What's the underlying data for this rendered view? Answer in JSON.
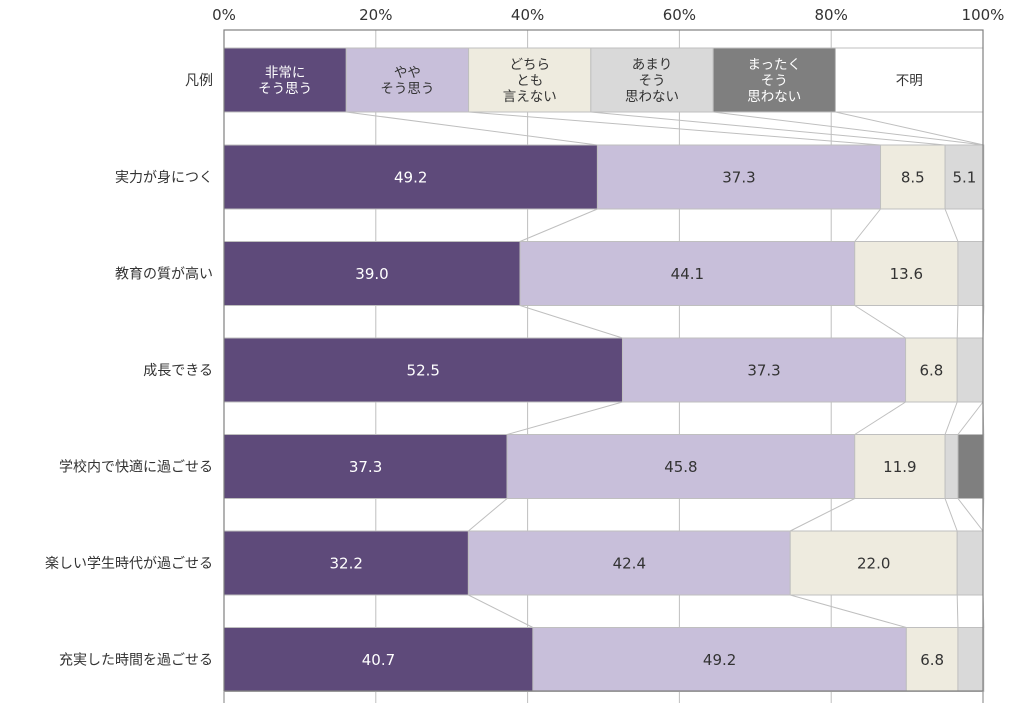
{
  "chart_data": {
    "type": "bar",
    "orientation": "horizontal",
    "stacked": "percent",
    "xlim": [
      0,
      100
    ],
    "x_ticks": [
      "0%",
      "20%",
      "40%",
      "60%",
      "80%",
      "100%"
    ],
    "grid": true,
    "connector_lines": true,
    "legend": {
      "label": "凡例",
      "placement": "top",
      "entries": [
        {
          "lines": [
            "非常に",
            "そう思う"
          ]
        },
        {
          "lines": [
            "やや",
            "そう思う"
          ]
        },
        {
          "lines": [
            "どちら",
            "とも",
            "言えない"
          ]
        },
        {
          "lines": [
            "あまり",
            "そう",
            "思わない"
          ]
        },
        {
          "lines": [
            "まったく",
            "そう",
            "思わない"
          ]
        },
        {
          "lines": [
            "不明"
          ]
        }
      ]
    },
    "series": [
      {
        "name": "非常にそう思う",
        "color": "#5e4a7a",
        "label_color": "#ffffff"
      },
      {
        "name": "ややそう思う",
        "color": "#c8bfda",
        "label_color": "#333333"
      },
      {
        "name": "どちらとも言えない",
        "color": "#eeebdf",
        "label_color": "#333333"
      },
      {
        "name": "あまりそう思わない",
        "color": "#d9d9d9",
        "label_color": "#333333"
      },
      {
        "name": "まったくそう思わない",
        "color": "#7f7f7f",
        "label_color": "#ffffff"
      },
      {
        "name": "不明",
        "color": "#ffffff",
        "label_color": "#333333"
      }
    ],
    "categories": [
      "実力が身につく",
      "教育の質が高い",
      "成長できる",
      "学校内で快適に過ごせる",
      "楽しい学生時代が過ごせる",
      "充実した時間を過ごせる"
    ],
    "values": [
      [
        49.2,
        37.3,
        8.5,
        5.1,
        0.0,
        0.0
      ],
      [
        39.0,
        44.1,
        13.6,
        3.4,
        0.0,
        0.0
      ],
      [
        52.5,
        37.3,
        6.8,
        3.4,
        0.0,
        0.0
      ],
      [
        37.3,
        45.8,
        11.9,
        1.7,
        3.4,
        0.0
      ],
      [
        32.2,
        42.4,
        22.0,
        3.4,
        0.0,
        0.0
      ],
      [
        40.7,
        49.2,
        6.8,
        3.4,
        0.0,
        0.0
      ]
    ],
    "data_labels": [
      [
        "49.2",
        "37.3",
        "8.5",
        "5.1",
        "",
        ""
      ],
      [
        "39.0",
        "44.1",
        "13.6",
        "",
        "",
        ""
      ],
      [
        "52.5",
        "37.3",
        "6.8",
        "",
        "",
        ""
      ],
      [
        "37.3",
        "45.8",
        "11.9",
        "",
        "",
        ""
      ],
      [
        "32.2",
        "42.4",
        "22.0",
        "",
        "",
        ""
      ],
      [
        "40.7",
        "49.2",
        "6.8",
        "",
        "",
        ""
      ]
    ]
  }
}
